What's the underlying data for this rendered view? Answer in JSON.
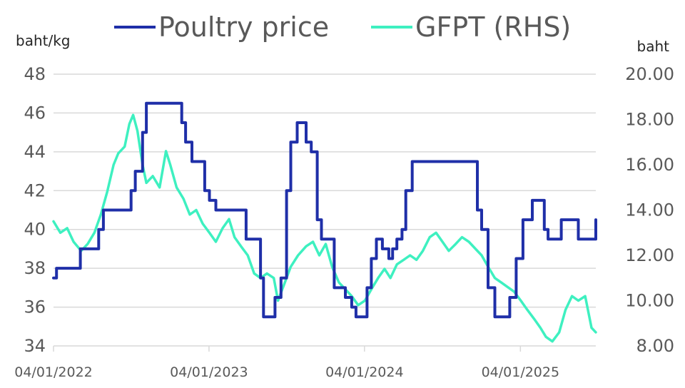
{
  "chart_data": {
    "type": "line",
    "grid": true,
    "legend_position": "top",
    "colors": {
      "poultry": "#1f2fa8",
      "gfpt": "#3ef0c0",
      "grid": "#d9d9d9",
      "tick_text": "#595959"
    },
    "legend": [
      "Poultry price",
      "GFPT (RHS)"
    ],
    "y_left": {
      "unit_label": "baht/kg",
      "range": [
        34,
        48
      ],
      "ticks": [
        "34",
        "36",
        "38",
        "40",
        "42",
        "44",
        "46",
        "48"
      ]
    },
    "y_right": {
      "unit_label": "baht",
      "range": [
        8,
        20
      ],
      "ticks": [
        "8.00",
        "10.00",
        "12.00",
        "14.00",
        "16.00",
        "18.00",
        "20.00"
      ]
    },
    "x_axis": {
      "range": [
        "2022-01-04",
        "2025-06-30"
      ],
      "ticks": [
        {
          "label": "04/01/2022",
          "date": "2022-01-04"
        },
        {
          "label": "04/01/2023",
          "date": "2023-01-04"
        },
        {
          "label": "04/01/2024",
          "date": "2024-01-04"
        },
        {
          "label": "04/01/2025",
          "date": "2025-01-04"
        }
      ]
    },
    "series": [
      {
        "name": "Poultry price",
        "axis": "left",
        "style": "step",
        "points": [
          [
            "2022-01-04",
            37.5
          ],
          [
            "2022-01-11",
            38.0
          ],
          [
            "2022-03-01",
            38.0
          ],
          [
            "2022-03-08",
            39.0
          ],
          [
            "2022-04-10",
            39.0
          ],
          [
            "2022-04-20",
            40.0
          ],
          [
            "2022-05-01",
            41.0
          ],
          [
            "2022-06-20",
            41.0
          ],
          [
            "2022-07-05",
            42.0
          ],
          [
            "2022-07-15",
            43.0
          ],
          [
            "2022-08-01",
            45.0
          ],
          [
            "2022-08-10",
            46.5
          ],
          [
            "2022-10-20",
            46.5
          ],
          [
            "2022-11-01",
            45.5
          ],
          [
            "2022-11-10",
            44.5
          ],
          [
            "2022-11-25",
            43.5
          ],
          [
            "2022-12-15",
            43.5
          ],
          [
            "2022-12-25",
            42.0
          ],
          [
            "2023-01-05",
            41.5
          ],
          [
            "2023-01-20",
            41.0
          ],
          [
            "2023-03-20",
            41.0
          ],
          [
            "2023-04-01",
            39.5
          ],
          [
            "2023-04-25",
            39.5
          ],
          [
            "2023-05-05",
            37.5
          ],
          [
            "2023-05-12",
            35.5
          ],
          [
            "2023-06-01",
            35.5
          ],
          [
            "2023-06-08",
            36.5
          ],
          [
            "2023-06-22",
            37.5
          ],
          [
            "2023-07-05",
            42.0
          ],
          [
            "2023-07-15",
            44.5
          ],
          [
            "2023-07-30",
            45.5
          ],
          [
            "2023-08-12",
            45.5
          ],
          [
            "2023-08-20",
            44.5
          ],
          [
            "2023-09-01",
            44.0
          ],
          [
            "2023-09-15",
            40.5
          ],
          [
            "2023-09-25",
            39.5
          ],
          [
            "2023-10-15",
            39.5
          ],
          [
            "2023-10-25",
            37.0
          ],
          [
            "2023-11-10",
            37.0
          ],
          [
            "2023-11-20",
            36.5
          ],
          [
            "2023-12-05",
            36.0
          ],
          [
            "2023-12-15",
            35.5
          ],
          [
            "2024-01-01",
            35.5
          ],
          [
            "2024-01-10",
            37.0
          ],
          [
            "2024-01-20",
            38.5
          ],
          [
            "2024-02-01",
            39.5
          ],
          [
            "2024-02-15",
            39.0
          ],
          [
            "2024-03-01",
            38.5
          ],
          [
            "2024-03-10",
            39.0
          ],
          [
            "2024-03-20",
            39.5
          ],
          [
            "2024-04-01",
            40.0
          ],
          [
            "2024-04-10",
            42.0
          ],
          [
            "2024-04-25",
            43.5
          ],
          [
            "2024-09-15",
            43.5
          ],
          [
            "2024-09-25",
            41.0
          ],
          [
            "2024-10-05",
            40.0
          ],
          [
            "2024-10-20",
            37.0
          ],
          [
            "2024-11-05",
            35.5
          ],
          [
            "2024-12-01",
            35.5
          ],
          [
            "2024-12-10",
            36.5
          ],
          [
            "2024-12-25",
            38.5
          ],
          [
            "2025-01-10",
            40.5
          ],
          [
            "2025-02-01",
            41.5
          ],
          [
            "2025-02-20",
            41.5
          ],
          [
            "2025-03-01",
            40.0
          ],
          [
            "2025-03-10",
            39.5
          ],
          [
            "2025-04-01",
            39.5
          ],
          [
            "2025-04-10",
            40.5
          ],
          [
            "2025-05-10",
            40.5
          ],
          [
            "2025-05-20",
            39.5
          ],
          [
            "2025-06-25",
            39.5
          ],
          [
            "2025-06-30",
            40.5
          ]
        ]
      },
      {
        "name": "GFPT (RHS)",
        "axis": "right",
        "style": "line",
        "points": [
          [
            "2022-01-04",
            13.5
          ],
          [
            "2022-01-20",
            13.0
          ],
          [
            "2022-02-05",
            13.2
          ],
          [
            "2022-02-20",
            12.6
          ],
          [
            "2022-03-10",
            12.2
          ],
          [
            "2022-03-25",
            12.5
          ],
          [
            "2022-04-10",
            13.0
          ],
          [
            "2022-04-25",
            13.8
          ],
          [
            "2022-05-10",
            14.8
          ],
          [
            "2022-05-25",
            16.0
          ],
          [
            "2022-06-05",
            16.5
          ],
          [
            "2022-06-20",
            16.8
          ],
          [
            "2022-07-01",
            17.8
          ],
          [
            "2022-07-10",
            18.2
          ],
          [
            "2022-07-20",
            17.5
          ],
          [
            "2022-08-01",
            16.0
          ],
          [
            "2022-08-10",
            15.2
          ],
          [
            "2022-08-25",
            15.5
          ],
          [
            "2022-09-10",
            15.0
          ],
          [
            "2022-09-25",
            16.6
          ],
          [
            "2022-10-05",
            16.0
          ],
          [
            "2022-10-20",
            15.0
          ],
          [
            "2022-11-05",
            14.5
          ],
          [
            "2022-11-20",
            13.8
          ],
          [
            "2022-12-05",
            14.0
          ],
          [
            "2022-12-20",
            13.4
          ],
          [
            "2023-01-05",
            13.0
          ],
          [
            "2023-01-20",
            12.6
          ],
          [
            "2023-02-05",
            13.2
          ],
          [
            "2023-02-20",
            13.6
          ],
          [
            "2023-03-05",
            12.8
          ],
          [
            "2023-03-20",
            12.4
          ],
          [
            "2023-04-05",
            12.0
          ],
          [
            "2023-04-20",
            11.2
          ],
          [
            "2023-05-05",
            11.0
          ],
          [
            "2023-05-20",
            11.2
          ],
          [
            "2023-06-05",
            11.0
          ],
          [
            "2023-06-15",
            10.0
          ],
          [
            "2023-07-01",
            10.8
          ],
          [
            "2023-07-15",
            11.5
          ],
          [
            "2023-08-01",
            12.0
          ],
          [
            "2023-08-20",
            12.4
          ],
          [
            "2023-09-05",
            12.6
          ],
          [
            "2023-09-20",
            12.0
          ],
          [
            "2023-10-05",
            12.5
          ],
          [
            "2023-10-20",
            11.5
          ],
          [
            "2023-11-05",
            10.8
          ],
          [
            "2023-11-20",
            10.5
          ],
          [
            "2023-12-05",
            10.2
          ],
          [
            "2023-12-20",
            9.8
          ],
          [
            "2024-01-05",
            10.0
          ],
          [
            "2024-01-20",
            10.5
          ],
          [
            "2024-02-05",
            11.0
          ],
          [
            "2024-02-20",
            11.4
          ],
          [
            "2024-03-05",
            11.0
          ],
          [
            "2024-03-20",
            11.6
          ],
          [
            "2024-04-05",
            11.8
          ],
          [
            "2024-04-20",
            12.0
          ],
          [
            "2024-05-05",
            11.8
          ],
          [
            "2024-05-20",
            12.2
          ],
          [
            "2024-06-05",
            12.8
          ],
          [
            "2024-06-20",
            13.0
          ],
          [
            "2024-07-05",
            12.6
          ],
          [
            "2024-07-20",
            12.2
          ],
          [
            "2024-08-05",
            12.5
          ],
          [
            "2024-08-20",
            12.8
          ],
          [
            "2024-09-05",
            12.6
          ],
          [
            "2024-09-20",
            12.3
          ],
          [
            "2024-10-05",
            12.0
          ],
          [
            "2024-10-20",
            11.5
          ],
          [
            "2024-11-05",
            11.0
          ],
          [
            "2024-11-20",
            10.8
          ],
          [
            "2024-12-05",
            10.6
          ],
          [
            "2024-12-20",
            10.4
          ],
          [
            "2025-01-05",
            10.0
          ],
          [
            "2025-01-20",
            9.6
          ],
          [
            "2025-02-05",
            9.2
          ],
          [
            "2025-02-20",
            8.8
          ],
          [
            "2025-03-05",
            8.4
          ],
          [
            "2025-03-20",
            8.2
          ],
          [
            "2025-04-05",
            8.6
          ],
          [
            "2025-04-20",
            9.6
          ],
          [
            "2025-05-05",
            10.2
          ],
          [
            "2025-05-20",
            10.0
          ],
          [
            "2025-06-05",
            10.2
          ],
          [
            "2025-06-20",
            8.8
          ],
          [
            "2025-06-30",
            8.6
          ]
        ]
      }
    ]
  }
}
